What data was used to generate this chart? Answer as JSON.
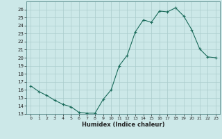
{
  "x": [
    0,
    1,
    2,
    3,
    4,
    5,
    6,
    7,
    8,
    9,
    10,
    11,
    12,
    13,
    14,
    15,
    16,
    17,
    18,
    19,
    20,
    21,
    22,
    23
  ],
  "y": [
    16.5,
    15.8,
    15.3,
    14.7,
    14.2,
    13.9,
    13.2,
    13.1,
    13.1,
    14.8,
    16.0,
    19.0,
    20.3,
    23.2,
    24.7,
    24.4,
    25.8,
    25.7,
    26.2,
    25.2,
    23.5,
    21.1,
    20.1,
    20.0
  ],
  "xlabel": "Humidex (Indice chaleur)",
  "xlim": [
    -0.5,
    23.5
  ],
  "ylim": [
    13,
    27
  ],
  "yticks": [
    13,
    14,
    15,
    16,
    17,
    18,
    19,
    20,
    21,
    22,
    23,
    24,
    25,
    26
  ],
  "xticks": [
    0,
    1,
    2,
    3,
    4,
    5,
    6,
    7,
    8,
    9,
    10,
    11,
    12,
    13,
    14,
    15,
    16,
    17,
    18,
    19,
    20,
    21,
    22,
    23
  ],
  "line_color": "#1a6b5a",
  "marker": "+",
  "bg_color": "#cce8e8",
  "grid_color": "#aacccc",
  "font_color": "#222222"
}
